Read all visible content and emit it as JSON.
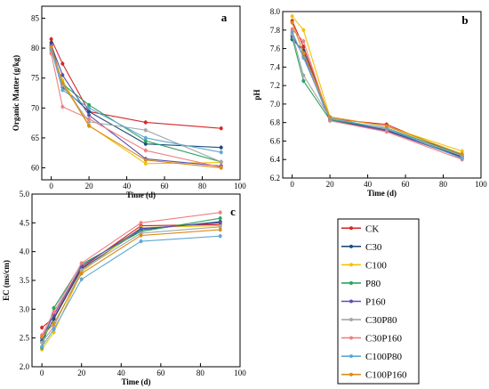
{
  "chart_data": [
    {
      "panel_label": "a",
      "type": "line",
      "xlabel": "Time (d)",
      "ylabel": "Organic Matter (g/kg)",
      "xlim": [
        -5,
        100
      ],
      "ylim": [
        58,
        87
      ],
      "xticks": [
        0,
        20,
        40,
        60,
        80,
        100
      ],
      "yticks": [
        60,
        65,
        70,
        75,
        80,
        85
      ],
      "x": [
        0,
        6,
        20,
        50,
        90
      ],
      "series": [
        {
          "name": "CK",
          "values": [
            81.5,
            77.4,
            69.4,
            67.6,
            66.6
          ]
        },
        {
          "name": "C30",
          "values": [
            80.9,
            73.5,
            69.4,
            64.0,
            63.4
          ]
        },
        {
          "name": "C100",
          "values": [
            79.4,
            74.6,
            67.1,
            60.7,
            60.9
          ]
        },
        {
          "name": "P80",
          "values": [
            80.0,
            74.0,
            70.5,
            64.5,
            61.0
          ]
        },
        {
          "name": "P160",
          "values": [
            80.5,
            75.5,
            68.8,
            61.5,
            60.3
          ]
        },
        {
          "name": "C30P80",
          "values": [
            79.6,
            73.8,
            67.7,
            66.3,
            61.0
          ]
        },
        {
          "name": "C30P160",
          "values": [
            79.1,
            70.2,
            68.2,
            62.9,
            60.1
          ]
        },
        {
          "name": "C100P80",
          "values": [
            79.8,
            73.0,
            70.0,
            65.0,
            62.6
          ]
        },
        {
          "name": "C100P160",
          "values": [
            80.2,
            74.2,
            67.0,
            61.3,
            60.0
          ]
        }
      ]
    },
    {
      "panel_label": "b",
      "type": "line",
      "xlabel": "Time (d)",
      "ylabel": "pH",
      "xlim": [
        -5,
        100
      ],
      "ylim": [
        6.2,
        8.0
      ],
      "xticks": [
        0,
        20,
        40,
        60,
        80,
        100
      ],
      "yticks": [
        6.2,
        6.4,
        6.6,
        6.8,
        7.0,
        7.2,
        7.4,
        7.6,
        7.8,
        8.0
      ],
      "x": [
        0,
        6,
        20,
        50,
        90
      ],
      "series": [
        {
          "name": "CK",
          "values": [
            7.9,
            7.62,
            6.84,
            6.78,
            6.44
          ]
        },
        {
          "name": "C30",
          "values": [
            7.7,
            7.58,
            6.83,
            6.72,
            6.43
          ]
        },
        {
          "name": "C100",
          "values": [
            7.95,
            7.8,
            6.86,
            6.76,
            6.49
          ]
        },
        {
          "name": "P80",
          "values": [
            7.72,
            7.25,
            6.83,
            6.74,
            6.45
          ]
        },
        {
          "name": "P160",
          "values": [
            7.74,
            7.52,
            6.82,
            6.71,
            6.42
          ]
        },
        {
          "name": "C30P80",
          "values": [
            7.76,
            7.31,
            6.85,
            6.73,
            6.44
          ]
        },
        {
          "name": "C30P160",
          "values": [
            7.81,
            7.68,
            6.82,
            6.7,
            6.4
          ]
        },
        {
          "name": "C100P80",
          "values": [
            7.78,
            7.5,
            6.84,
            6.74,
            6.41
          ]
        },
        {
          "name": "C100P160",
          "values": [
            7.88,
            7.55,
            6.86,
            6.76,
            6.46
          ]
        }
      ]
    },
    {
      "panel_label": "c",
      "type": "line",
      "xlabel": "Time (d)",
      "ylabel": "EC (ms/cm)",
      "xlim": [
        -5,
        100
      ],
      "ylim": [
        2.0,
        5.0
      ],
      "xticks": [
        0,
        20,
        40,
        60,
        80,
        100
      ],
      "yticks": [
        2.0,
        2.5,
        3.0,
        3.5,
        4.0,
        4.5,
        5.0
      ],
      "x": [
        0,
        6,
        20,
        50,
        90
      ],
      "series": [
        {
          "name": "CK",
          "values": [
            2.68,
            2.85,
            3.72,
            4.45,
            4.47
          ]
        },
        {
          "name": "C30",
          "values": [
            2.45,
            2.83,
            3.7,
            4.38,
            4.52
          ]
        },
        {
          "name": "C100",
          "values": [
            2.3,
            2.6,
            3.65,
            4.42,
            4.45
          ]
        },
        {
          "name": "P80",
          "values": [
            2.33,
            3.02,
            3.78,
            4.35,
            4.58
          ]
        },
        {
          "name": "P160",
          "values": [
            2.5,
            2.9,
            3.75,
            4.4,
            4.5
          ]
        },
        {
          "name": "C30P80",
          "values": [
            2.42,
            2.7,
            3.68,
            4.32,
            4.43
          ]
        },
        {
          "name": "C30P160",
          "values": [
            2.55,
            2.95,
            3.8,
            4.5,
            4.68
          ]
        },
        {
          "name": "C100P80",
          "values": [
            2.35,
            2.65,
            3.52,
            4.18,
            4.27
          ]
        },
        {
          "name": "C100P160",
          "values": [
            2.52,
            2.75,
            3.62,
            4.28,
            4.38
          ]
        }
      ]
    }
  ],
  "legend": {
    "placement": "bottom-right",
    "entries": [
      {
        "name": "CK",
        "color": "#d62728"
      },
      {
        "name": "C30",
        "color": "#1f4e79"
      },
      {
        "name": "C100",
        "color": "#f2c200"
      },
      {
        "name": "P80",
        "color": "#2ca25f"
      },
      {
        "name": "P160",
        "color": "#5b4fb3"
      },
      {
        "name": "C30P80",
        "color": "#a6a6a6"
      },
      {
        "name": "C30P160",
        "color": "#f08080"
      },
      {
        "name": "C100P80",
        "color": "#5fa8d3"
      },
      {
        "name": "C100P160",
        "color": "#d98c1a"
      }
    ]
  }
}
